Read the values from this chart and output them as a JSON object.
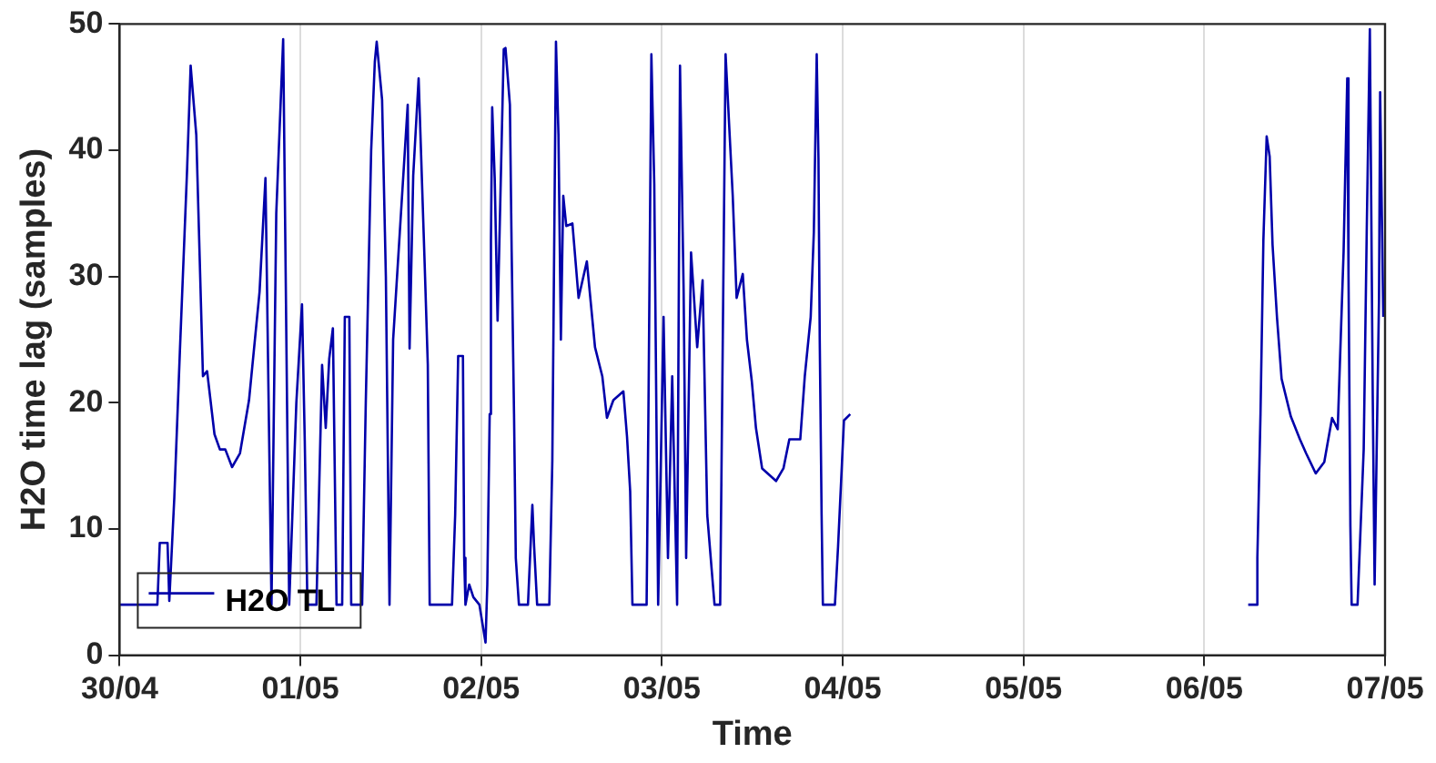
{
  "chart_data": {
    "type": "line",
    "xlabel": "Time",
    "ylabel": "H2O time lag (samples)",
    "x": [
      "--04-30T00:00",
      "--04-30T05:01",
      "--04-30T05:20",
      "--04-30T06:22",
      "--04-30T06:36",
      "--04-30T07:16",
      "--04-30T08:00",
      "--04-30T08:57",
      "--04-30T09:26",
      "--04-30T10:11",
      "--04-30T11:04",
      "--04-30T11:37",
      "--04-30T12:36",
      "--04-30T13:19",
      "--04-30T14:02",
      "--04-30T14:56",
      "--04-30T15:59",
      "--04-30T17:11",
      "--04-30T18:35",
      "--04-30T19:22",
      "--04-30T20:10",
      "--04-30T20:48",
      "--04-30T21:43",
      "--04-30T22:31",
      "--04-30T23:28",
      "--05-01T00:13",
      "--05-01T00:35",
      "--05-01T00:56",
      "--05-01T02:08",
      "--05-01T02:53",
      "--05-01T03:22",
      "--05-01T03:50",
      "--05-01T04:19",
      "--05-01T04:48",
      "--05-01T05:33",
      "--05-01T05:54",
      "--05-01T06:30",
      "--05-01T06:45",
      "--05-01T08:12",
      "--05-01T08:41",
      "--05-01T09:24",
      "--05-01T09:53",
      "--05-01T10:08",
      "--05-01T10:51",
      "--05-01T11:21",
      "--05-01T11:50",
      "--05-01T12:19",
      "--05-01T14:15",
      "--05-01T14:30",
      "--05-01T14:59",
      "--05-01T15:42",
      "--05-01T16:31",
      "--05-01T16:55",
      "--05-01T17:10",
      "--05-01T20:08",
      "--05-01T20:33",
      "--05-01T20:57",
      "--05-01T21:35",
      "--05-01T21:45",
      "--05-01T21:55",
      "--05-01T22:25",
      "--05-01T22:58",
      "--05-01T23:46",
      "--05-02T00:35",
      "--05-02T00:49",
      "--05-02T01:08",
      "--05-02T01:18",
      "--05-02T01:28",
      "--05-02T01:48",
      "--05-02T02:11",
      "--05-02T03:00",
      "--05-02T03:14",
      "--05-02T03:49",
      "--05-02T04:03",
      "--05-02T04:22",
      "--05-02T04:36",
      "--05-02T05:01",
      "--05-02T06:13",
      "--05-02T06:48",
      "--05-02T07:02",
      "--05-02T07:26",
      "--05-02T09:03",
      "--05-02T09:27",
      "--05-02T09:56",
      "--05-02T10:16",
      "--05-02T10:35",
      "--05-02T10:54",
      "--05-02T11:18",
      "--05-02T12:07",
      "--05-02T12:56",
      "--05-02T14:02",
      "--05-02T15:07",
      "--05-02T16:05",
      "--05-02T16:42",
      "--05-02T17:33",
      "--05-02T18:53",
      "--05-02T19:22",
      "--05-02T19:47",
      "--05-02T20:05",
      "--05-02T21:58",
      "--05-02T22:12",
      "--05-02T22:36",
      "--05-02T22:59",
      "--05-02T23:30",
      "--05-03T00:13",
      "--05-03T00:48",
      "--05-03T01:22",
      "--05-03T02:01",
      "--05-03T02:24",
      "--05-03T02:53",
      "--05-03T03:13",
      "--05-03T03:52",
      "--05-03T04:41",
      "--05-03T05:24",
      "--05-03T06:01",
      "--05-03T06:59",
      "--05-03T07:44",
      "--05-03T08:27",
      "--05-03T09:24",
      "--05-03T09:55",
      "--05-03T10:44",
      "--05-03T11:17",
      "--05-03T11:56",
      "--05-03T12:29",
      "--05-03T13:18",
      "--05-03T15:09",
      "--05-03T16:08",
      "--05-03T16:55",
      "--05-03T18:22",
      "--05-03T18:58",
      "--05-03T19:45",
      "--05-03T20:10",
      "--05-03T20:33",
      "--05-03T20:47",
      "--05-03T20:57",
      "--05-03T21:12",
      "--05-03T21:22",
      "--05-03T22:58",
      "--05-03T23:23",
      "--05-04T00:10",
      "--05-04T01:00",
      "--05-05T00:00",
      "--05-06T05:50",
      "--05-06T06:53",
      "--05-06T07:03",
      "--05-06T07:28",
      "--05-06T07:51",
      "--05-06T08:17",
      "--05-06T08:41",
      "--05-06T09:04",
      "--05-06T09:39",
      "--05-06T10:16",
      "--05-06T11:30",
      "--05-06T12:42",
      "--05-06T13:31",
      "--05-06T14:48",
      "--05-06T15:56",
      "--05-06T16:58",
      "--05-06T17:43",
      "--05-06T18:30",
      "--05-06T18:59",
      "--05-06T19:09",
      "--05-06T19:24",
      "--05-06T19:34",
      "--05-06T20:21",
      "--05-06T21:10",
      "--05-06T21:35",
      "--05-06T21:59",
      "--05-06T22:22",
      "--05-06T22:37",
      "--05-06T23:12",
      "--05-06T23:21",
      "--05-06T23:46"
    ],
    "series": [
      {
        "name": "H2O TL",
        "color": "#0000aa",
        "values": [
          4,
          4,
          8.9,
          8.9,
          4.3,
          12.5,
          24,
          38.3,
          46.7,
          41.2,
          22.1,
          22.5,
          17.5,
          16.3,
          16.3,
          14.9,
          16,
          20.2,
          28.8,
          37.8,
          4,
          35,
          48.8,
          4,
          20,
          27.8,
          17,
          4,
          4,
          23,
          18,
          23.5,
          25.9,
          4,
          4,
          26.8,
          26.8,
          4,
          4,
          20,
          40,
          47,
          48.6,
          44,
          30,
          4,
          25,
          43.6,
          24.3,
          38,
          45.7,
          30.7,
          23,
          4,
          4,
          11.1,
          23.7,
          23.7,
          7.7,
          4,
          5.6,
          4.6,
          4,
          1,
          5.6,
          19.1,
          32.9,
          43.4,
          37.8,
          26.5,
          48,
          48.1,
          43.6,
          32,
          19.1,
          7.7,
          4,
          4,
          11.9,
          8.6,
          4,
          4,
          15.4,
          48.6,
          41.2,
          25,
          36.4,
          34,
          34.2,
          28.3,
          31.2,
          24.4,
          22.1,
          18.8,
          20.2,
          20.9,
          17.3,
          13,
          4,
          4,
          18.6,
          47.6,
          37.3,
          4,
          26.8,
          7.7,
          22.1,
          4,
          46.7,
          28.8,
          7.7,
          31.9,
          24.4,
          29.7,
          11.1,
          4,
          4,
          47.6,
          36.4,
          28.3,
          30.2,
          25,
          21.7,
          18,
          14.8,
          13.8,
          14.8,
          17.1,
          17.1,
          22.1,
          26.8,
          33.5,
          47.6,
          39.3,
          25,
          11.1,
          4,
          4,
          8.6,
          18.6,
          19.1,
          null,
          4,
          4,
          7.7,
          19.1,
          32.9,
          41.1,
          39.5,
          32.5,
          26.8,
          21.9,
          18.9,
          17.1,
          16,
          14.4,
          15.3,
          18.8,
          17.9,
          32,
          45.7,
          30.2,
          10.2,
          4,
          4,
          16.3,
          34.2,
          49.6,
          20.6,
          5.6,
          28.3,
          44.6,
          26.8
        ]
      }
    ],
    "xlim": [
      "--04-30",
      "--05-07"
    ],
    "xticks": [
      {
        "value": "--04-30",
        "label": "30/04"
      },
      {
        "value": "--05-01",
        "label": "01/05"
      },
      {
        "value": "--05-02",
        "label": "02/05"
      },
      {
        "value": "--05-03",
        "label": "03/05"
      },
      {
        "value": "--05-04",
        "label": "04/05"
      },
      {
        "value": "--05-05",
        "label": "05/05"
      },
      {
        "value": "--05-06",
        "label": "06/05"
      },
      {
        "value": "--05-07",
        "label": "07/05"
      }
    ],
    "ylim": [
      0,
      50
    ],
    "yticks": [
      0,
      10,
      20,
      30,
      40,
      50
    ],
    "grid": "x",
    "legend": "bottom left",
    "marker": "none",
    "line_style": "solid"
  }
}
